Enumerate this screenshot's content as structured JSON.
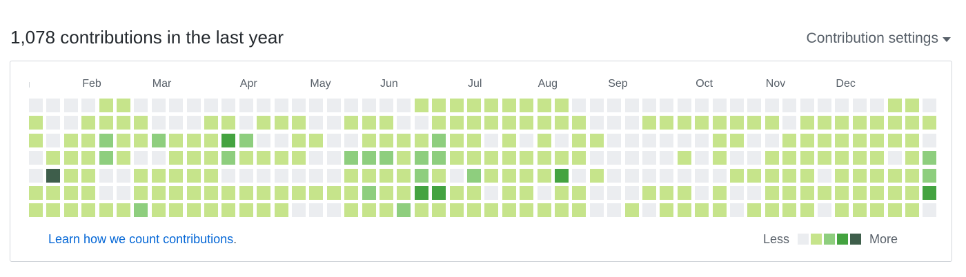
{
  "header": {
    "title": "1,078 contributions in the last year",
    "settings_label": "Contribution settings"
  },
  "months": [
    {
      "label": "Feb",
      "week": 3
    },
    {
      "label": "Mar",
      "week": 7
    },
    {
      "label": "Apr",
      "week": 12
    },
    {
      "label": "May",
      "week": 16
    },
    {
      "label": "Jun",
      "week": 20
    },
    {
      "label": "Jul",
      "week": 25
    },
    {
      "label": "Aug",
      "week": 29
    },
    {
      "label": "Sep",
      "week": 33
    },
    {
      "label": "Oct",
      "week": 38
    },
    {
      "label": "Nov",
      "week": 42
    },
    {
      "label": "Dec",
      "week": 46
    }
  ],
  "level_colors": [
    "#ebedf0",
    "#c6e48b",
    "#8ece7e",
    "#44a340",
    "#3e5e4b"
  ],
  "contribution_levels": [
    "0000110000000000000000111111111000000000000000000110",
    "1001111000110111001110011111111100011111111011111111",
    "1011211211132001100111121101010110000001100111111110",
    "0111210011121111002221221111111100000101001111111012",
    "0411001111100000001111210211113010000000111110111112",
    "1111001111111111111211331101101100011101001111111113",
    "1111112111111110001112111111111100101111011110111110"
  ],
  "footer": {
    "learn_link": "Learn how we count contributions",
    "learn_period": ".",
    "legend_less": "Less",
    "legend_more": "More"
  }
}
